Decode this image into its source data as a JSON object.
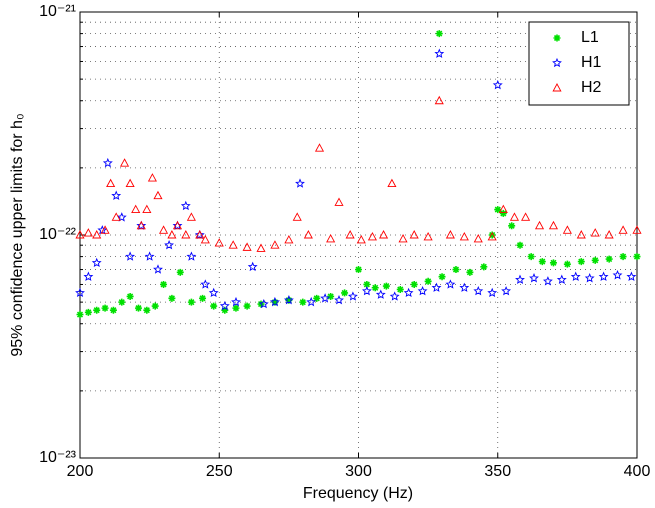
{
  "chart_data": {
    "type": "scatter",
    "x_label": "Frequency (Hz)",
    "y_label": "95% confidence upper limits for h₀",
    "log_y": true,
    "grid": true,
    "legend": "upper right",
    "xlim": [
      200,
      400
    ],
    "xticks": [
      200,
      250,
      300,
      350,
      400
    ],
    "ylim": [
      1e-23,
      1e-21
    ],
    "yticks": [
      {
        "value": 1e-23,
        "label": "10⁻²³"
      },
      {
        "value": 1e-22,
        "label": "10⁻²²"
      },
      {
        "value": 1e-21,
        "label": "10⁻²¹"
      }
    ],
    "yminorticks": [
      2e-23,
      3e-23,
      4e-23,
      5e-23,
      6e-23,
      7e-23,
      8e-23,
      9e-23,
      2e-22,
      3e-22,
      4e-22,
      5e-22,
      6e-22,
      7e-22,
      8e-22,
      9e-22
    ],
    "series": [
      {
        "name": "L1",
        "color": "#00e000",
        "x": [
          200,
          203,
          206,
          209,
          212,
          215,
          218,
          221,
          224,
          227,
          230,
          233,
          236,
          240,
          244,
          248,
          252,
          256,
          260,
          265,
          270,
          275,
          280,
          285,
          290,
          295,
          300,
          303,
          306,
          310,
          315,
          320,
          325,
          329,
          330,
          335,
          340,
          345,
          348,
          350,
          352,
          355,
          358,
          362,
          366,
          370,
          375,
          380,
          385,
          390,
          395,
          400
        ],
        "values": [
          4.4e-23,
          4.5e-23,
          4.6e-23,
          4.7e-23,
          4.6e-23,
          5e-23,
          5.3e-23,
          4.7e-23,
          4.6e-23,
          4.8e-23,
          6e-23,
          5.2e-23,
          6.8e-23,
          5e-23,
          5.2e-23,
          4.8e-23,
          4.6e-23,
          4.7e-23,
          4.8e-23,
          4.9e-23,
          5e-23,
          5.1e-23,
          5e-23,
          5.2e-23,
          5.3e-23,
          5.5e-23,
          7e-23,
          6e-23,
          5.8e-23,
          5.9e-23,
          5.7e-23,
          6e-23,
          6.2e-23,
          8e-22,
          6.5e-23,
          7e-23,
          6.8e-23,
          7.2e-23,
          1e-22,
          1.3e-22,
          1.25e-22,
          1.1e-22,
          9e-23,
          8e-23,
          7.6e-23,
          7.5e-23,
          7.4e-23,
          7.6e-23,
          7.7e-23,
          7.8e-23,
          8e-23,
          8e-23
        ]
      },
      {
        "name": "H1",
        "color": "#0000ff",
        "x": [
          200,
          203,
          206,
          208,
          210,
          213,
          215,
          218,
          222,
          225,
          228,
          232,
          235,
          238,
          240,
          243,
          245,
          248,
          252,
          256,
          262,
          266,
          270,
          275,
          279,
          283,
          288,
          293,
          298,
          303,
          308,
          313,
          318,
          323,
          328,
          329,
          333,
          338,
          343,
          348,
          350,
          353,
          358,
          363,
          368,
          373,
          378,
          383,
          388,
          393,
          398
        ],
        "values": [
          5.5e-23,
          6.5e-23,
          7.5e-23,
          1.05e-22,
          2.1e-22,
          1.5e-22,
          1.2e-22,
          8e-23,
          1.1e-22,
          8e-23,
          7e-23,
          9e-23,
          1.1e-22,
          1.35e-22,
          8e-23,
          1e-22,
          6e-23,
          5.5e-23,
          4.8e-23,
          5e-23,
          7.2e-23,
          4.9e-23,
          5e-23,
          5.1e-23,
          1.7e-22,
          5e-23,
          5.2e-23,
          5.1e-23,
          5.3e-23,
          5.6e-23,
          5.4e-23,
          5.3e-23,
          5.5e-23,
          5.6e-23,
          5.8e-23,
          6.5e-22,
          6e-23,
          5.8e-23,
          5.6e-23,
          5.5e-23,
          4.7e-22,
          5.6e-23,
          6.3e-23,
          6.4e-23,
          6.2e-23,
          6.3e-23,
          6.5e-23,
          6.4e-23,
          6.5e-23,
          6.6e-23,
          6.5e-23
        ]
      },
      {
        "name": "H2",
        "color": "#ff0000",
        "x": [
          200,
          203,
          206,
          209,
          211,
          213,
          216,
          218,
          220,
          222,
          224,
          226,
          228,
          230,
          233,
          235,
          238,
          240,
          243,
          245,
          250,
          255,
          260,
          265,
          270,
          275,
          278,
          282,
          286,
          290,
          293,
          297,
          301,
          305,
          309,
          312,
          316,
          320,
          325,
          329,
          333,
          338,
          343,
          348,
          352,
          356,
          360,
          365,
          370,
          375,
          380,
          385,
          390,
          395,
          400
        ],
        "values": [
          1e-22,
          1.02e-22,
          1e-22,
          1.05e-22,
          1.7e-22,
          1.2e-22,
          2.1e-22,
          1.7e-22,
          1.3e-22,
          1.1e-22,
          1.3e-22,
          1.8e-22,
          1.5e-22,
          1.05e-22,
          1e-22,
          1.1e-22,
          1e-22,
          1.2e-22,
          1e-22,
          9.5e-23,
          9.2e-23,
          9e-23,
          8.8e-23,
          8.7e-23,
          9e-23,
          9.5e-23,
          1.2e-22,
          1e-22,
          2.45e-22,
          9.6e-23,
          1.4e-22,
          1e-22,
          9.5e-23,
          9.8e-23,
          1e-22,
          1.7e-22,
          9.6e-23,
          1e-22,
          9.8e-23,
          4e-22,
          1e-22,
          9.8e-23,
          9.6e-23,
          9.8e-23,
          1.3e-22,
          1.2e-22,
          1.2e-22,
          1.1e-22,
          1.1e-22,
          1.05e-22,
          1e-22,
          1.02e-22,
          1e-22,
          1.05e-22,
          1.05e-22
        ]
      }
    ]
  }
}
